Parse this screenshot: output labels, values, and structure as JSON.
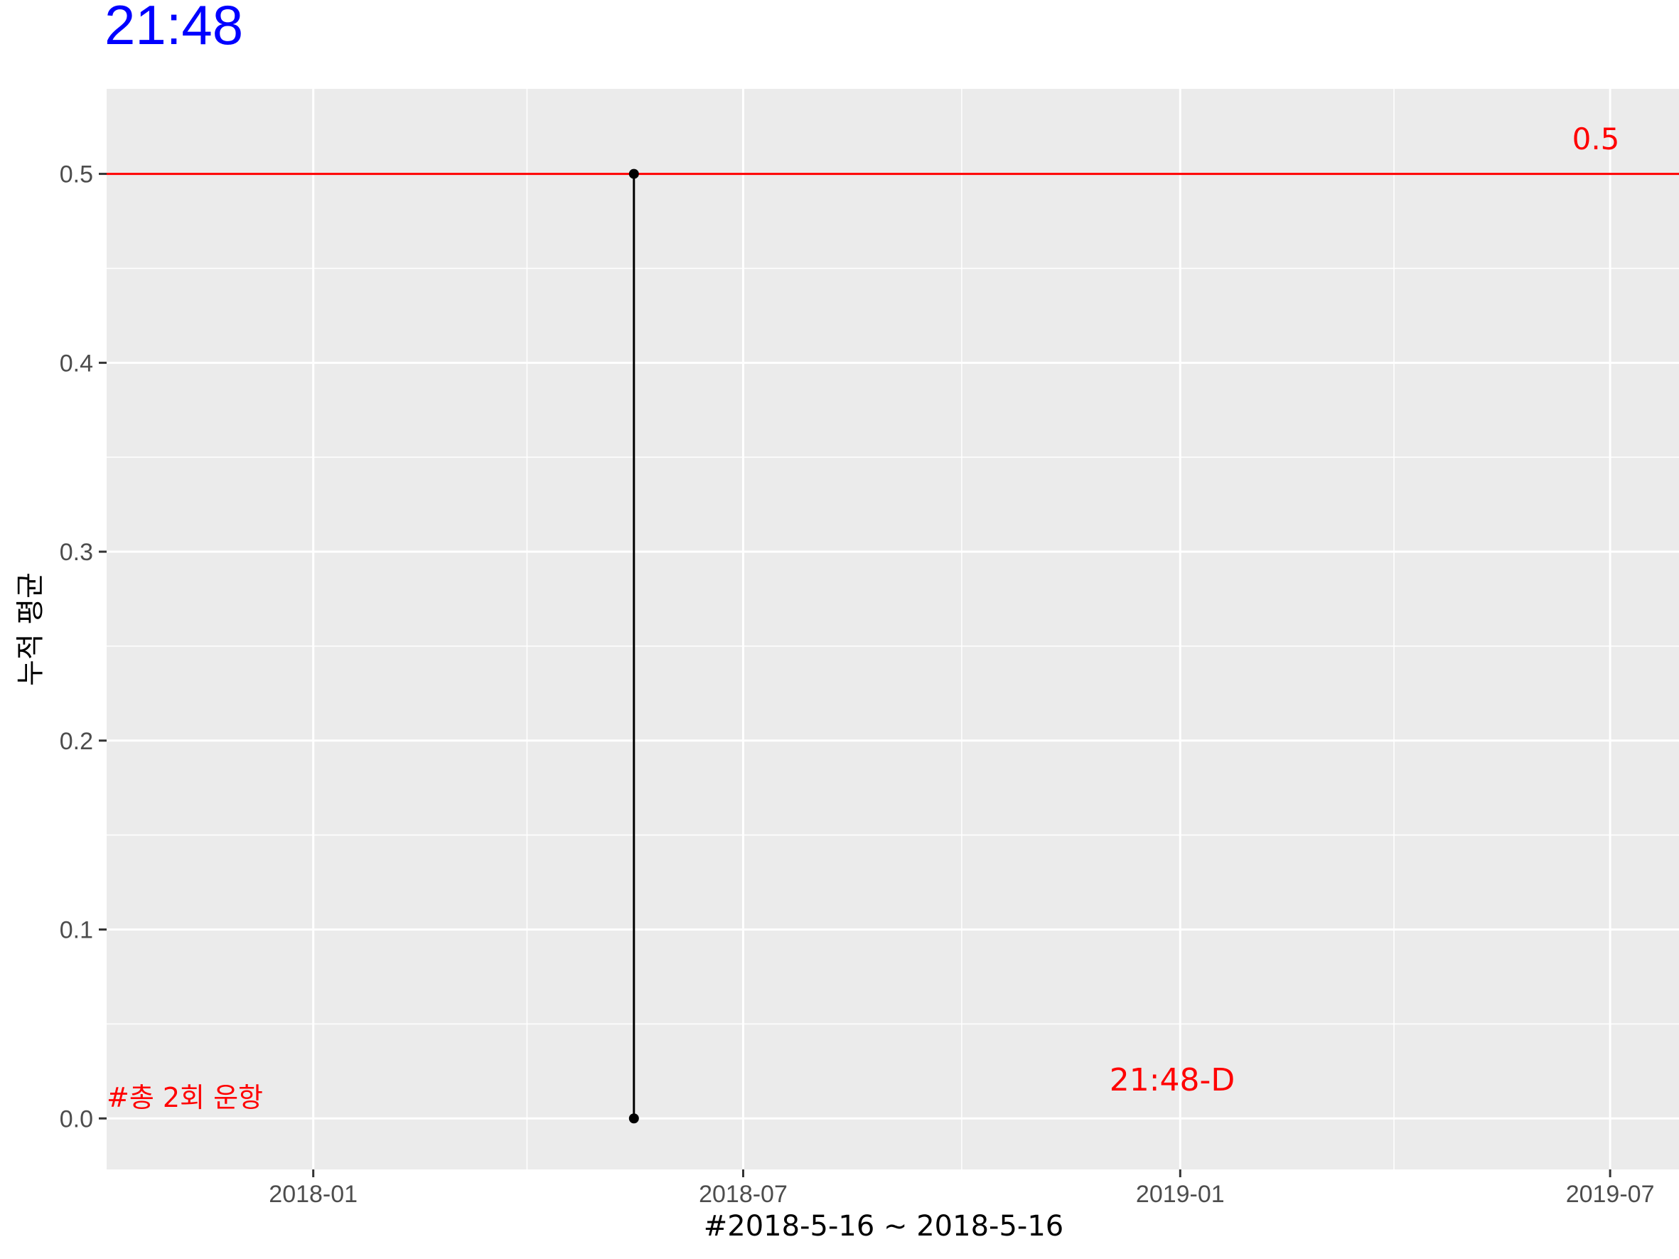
{
  "chart_data": {
    "type": "line",
    "title": "21:48",
    "xlabel": "#2018-5-16 ~ 2018-5-16",
    "ylabel": "누적 평균",
    "x_axis": {
      "scale": "date",
      "range": [
        "2017-10-06",
        "2019-07-30"
      ],
      "major_ticks": [
        "2018-01-01",
        "2018-07-01",
        "2019-01-01",
        "2019-07-01"
      ],
      "tick_labels": [
        "2018-01",
        "2018-07",
        "2019-01",
        "2019-07"
      ],
      "minor_ticks": [
        "2018-04-01",
        "2018-10-01",
        "2019-04-01"
      ]
    },
    "y_axis": {
      "range": [
        -0.027,
        0.545
      ],
      "major_ticks": [
        0.0,
        0.1,
        0.2,
        0.3,
        0.4,
        0.5
      ],
      "tick_labels": [
        "0.0",
        "0.1",
        "0.2",
        "0.3",
        "0.4",
        "0.5"
      ],
      "minor_ticks": [
        0.05,
        0.15,
        0.25,
        0.35,
        0.45
      ]
    },
    "series": [
      {
        "points": [
          {
            "x": "2018-05-16",
            "y": 0.0
          },
          {
            "x": "2018-05-16",
            "y": 0.5
          }
        ],
        "color": "#000000"
      }
    ],
    "hline": {
      "y": 0.5,
      "color": "#ff0000",
      "label": "0.5"
    },
    "annotations": {
      "total_runs": "#총 2회 운항",
      "code": "21:48-D"
    },
    "grid": true,
    "panel_background": "#ebebeb",
    "title_color": "#0000ff",
    "annotation_color": "#ff0000"
  }
}
